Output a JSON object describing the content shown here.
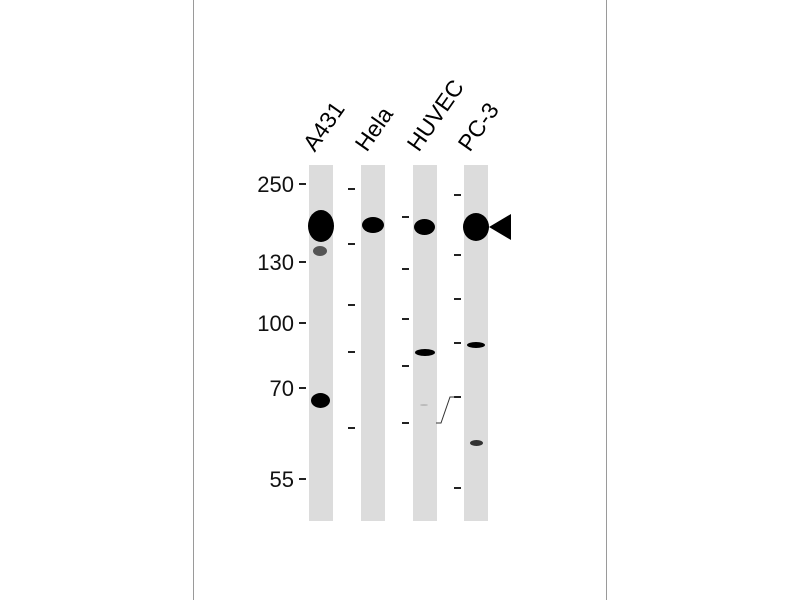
{
  "lanes": [
    "A431",
    "Hela",
    "HUVEC",
    "PC-3"
  ],
  "markers": [
    "250",
    "130",
    "100",
    "70",
    "55"
  ],
  "indicator": "arrowhead-left"
}
